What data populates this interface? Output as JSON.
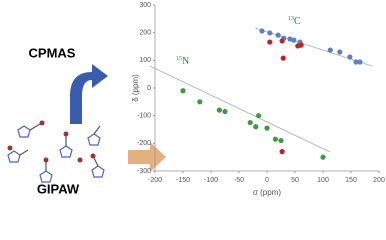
{
  "chart_data": {
    "type": "scatter",
    "xlabel": "σ (ppm)",
    "ylabel": "δ (ppm)",
    "xlim": [
      -200,
      200
    ],
    "xticks": [
      -200,
      -150,
      -100,
      -50,
      0,
      50,
      100,
      150,
      200
    ],
    "ylim": [
      -300,
      300
    ],
    "yticks": [
      -300,
      -200,
      -100,
      0,
      100,
      200,
      300
    ],
    "series": [
      {
        "color": "#5b80c6",
        "x": [
          -9,
          5,
          20,
          30,
          41,
          48,
          59,
          113,
          130,
          148,
          159,
          166
        ],
        "values": [
          206,
          199,
          191,
          180,
          177,
          173,
          166,
          137,
          130,
          112,
          94,
          94
        ]
      },
      {
        "color": "#c0202a",
        "x": [
          5,
          27,
          55,
          61,
          29,
          27
        ],
        "values": [
          166,
          170,
          152,
          155,
          108,
          -230
        ]
      },
      {
        "color": "#3d9a3d",
        "x": [
          -150,
          -120,
          -85,
          -75,
          -30,
          -20,
          -15,
          0,
          15,
          25,
          100
        ],
        "values": [
          -10,
          -50,
          -80,
          -85,
          -125,
          -140,
          -100,
          -145,
          -185,
          -190,
          -250
        ]
      }
    ],
    "annotations": [
      {
        "sup": "13",
        "text": "C",
        "color": "#2a5aa8"
      },
      {
        "sup": "15",
        "text": "N",
        "color": "#2e8a2e"
      }
    ]
  },
  "labels": {
    "top": "CPMAS",
    "bottom": "GIPAW"
  }
}
